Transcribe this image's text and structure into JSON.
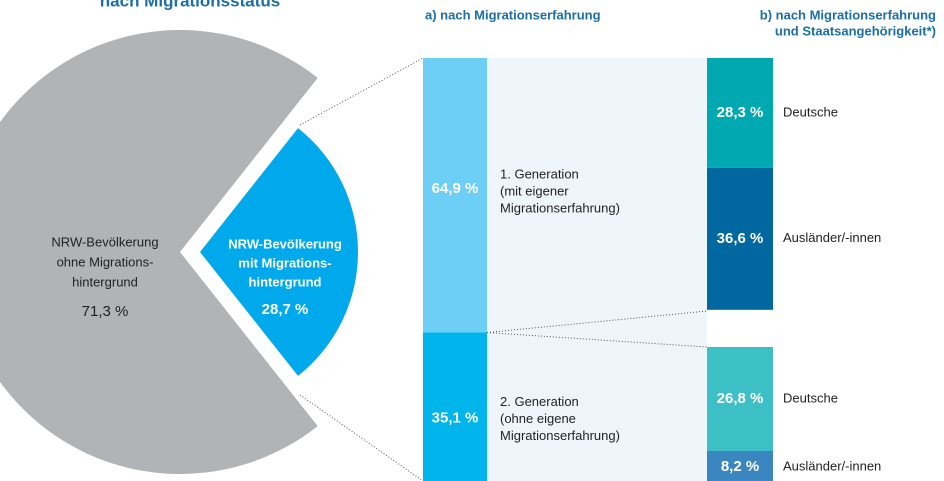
{
  "chart_data": [
    {
      "type": "pie",
      "title": "nach Migrationsstatus",
      "labels": [
        [
          "NRW-Bevölkerung",
          "ohne Migrations-",
          "hintergrund"
        ],
        [
          "NRW-Bevölkerung",
          "mit Migrations-",
          "hintergrund"
        ]
      ],
      "values": [
        71.3,
        28.7
      ],
      "value_labels": [
        "71,3 %",
        "28,7 %"
      ],
      "colors": [
        "#b1b3b5",
        "#00a9ec"
      ]
    },
    {
      "type": "bar",
      "title": "a) nach Migrationserfahrung",
      "categories": [
        [
          "1. Generation",
          "(mit eigener",
          "Migrationserfahrung)"
        ],
        [
          "2. Generation",
          "(ohne eigene",
          "Migrationserfahrung)"
        ]
      ],
      "values": [
        64.9,
        35.1
      ],
      "value_labels": [
        "64,9 %",
        "35,1 %"
      ],
      "colors": [
        "#6dcff6",
        "#00b5ec"
      ]
    },
    {
      "type": "bar",
      "title": [
        "b) nach Migrationserfahrung",
        "und Staatsangehörigkeit*)"
      ],
      "categories": [
        "Deutsche",
        "Ausländer/-innen",
        "Deutsche",
        "Ausländer/-innen"
      ],
      "values": [
        28.3,
        36.6,
        26.8,
        8.2
      ],
      "value_labels": [
        "28,3 %",
        "36,6 %",
        "26,8 %",
        "8,2 %"
      ],
      "colors": [
        "#00a9b1",
        "#00679f",
        "#3dbfc6",
        "#3a86c0"
      ]
    }
  ]
}
